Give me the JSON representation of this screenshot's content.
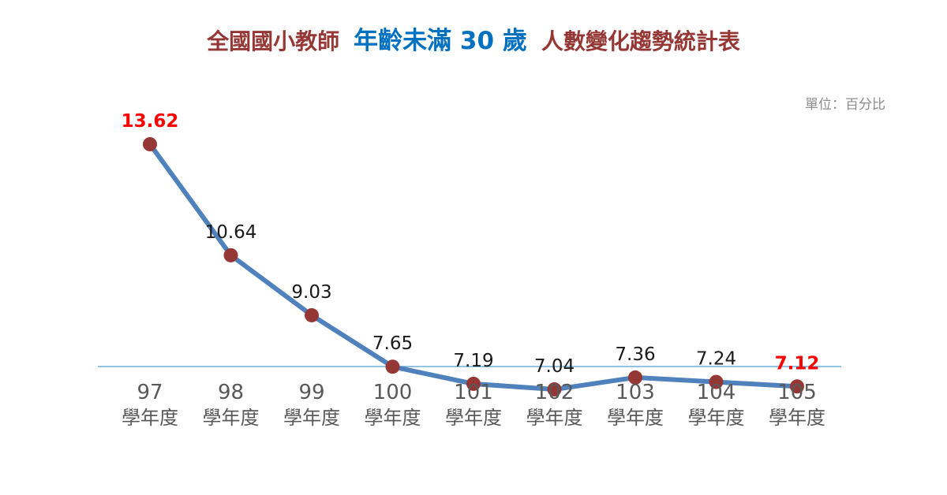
{
  "title": {
    "part1": "全國國小教師",
    "part2": "年齡未滿 30 歲",
    "part3": "人數變化趨勢統計表"
  },
  "unit_label": "單位：百分比",
  "colors": {
    "line": "#4f81bd",
    "marker": "#953734",
    "highlight_label": "#ff0000",
    "label": "#1a1a1a",
    "axis": "#4f9fd0",
    "tick_label": "#595959"
  },
  "chart_data": {
    "type": "line",
    "categories": [
      "97",
      "98",
      "99",
      "100",
      "101",
      "102",
      "103",
      "104",
      "105"
    ],
    "category_suffix": "學年度",
    "series": [
      {
        "values": [
          13.62,
          10.64,
          9.03,
          7.65,
          7.19,
          7.04,
          7.36,
          7.24,
          7.12
        ]
      }
    ],
    "highlighted_points": [
      0,
      8
    ],
    "title": "全國國小教師 年齡未滿 30 歲 人數變化趨勢統計表",
    "xlabel": "",
    "ylabel": "",
    "unit": "單位：百分比",
    "grid": false,
    "legend": false
  }
}
